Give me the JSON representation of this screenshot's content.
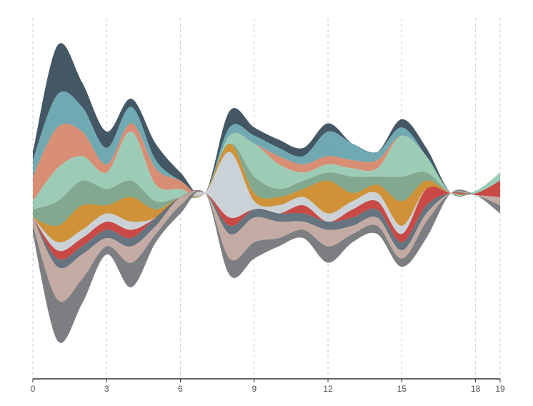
{
  "chart_data": {
    "type": "streamgraph",
    "x": [
      0,
      1,
      2,
      3,
      4,
      5,
      6,
      7,
      8,
      9,
      10,
      11,
      12,
      13,
      14,
      15,
      16,
      17,
      18,
      19
    ],
    "xlim": [
      0,
      19
    ],
    "xticks": [
      0,
      3,
      6,
      9,
      12,
      15,
      18,
      19
    ],
    "grid": true,
    "series": [
      {
        "color": "#2f4554",
        "values": [
          1,
          6,
          3,
          2,
          1,
          2,
          1,
          0,
          2,
          1,
          1,
          1,
          1,
          0,
          0,
          1,
          1,
          0,
          0,
          0
        ]
      },
      {
        "color": "#61a0a8",
        "values": [
          2,
          4,
          3,
          2,
          2,
          1,
          0,
          0,
          1,
          1,
          1,
          1,
          3,
          2,
          1,
          1,
          0,
          0,
          0,
          0
        ]
      },
      {
        "color": "#d48265",
        "values": [
          3,
          5,
          3,
          1,
          1,
          2,
          1,
          0,
          0,
          0,
          1,
          1,
          1,
          1,
          1,
          0,
          0,
          0,
          0,
          0
        ]
      },
      {
        "color": "#91c7ae",
        "values": [
          1,
          4,
          3,
          2,
          6,
          2,
          1,
          0,
          1,
          4,
          3,
          1,
          1,
          1,
          1,
          5,
          2,
          0,
          0.3,
          1
        ]
      },
      {
        "color": "#749f83",
        "values": [
          1,
          3,
          3,
          2,
          2,
          1,
          0,
          0,
          0,
          2,
          1,
          1,
          1,
          2,
          1,
          3,
          1,
          0,
          0,
          0
        ]
      },
      {
        "color": "#ca8622",
        "values": [
          0,
          2,
          3,
          1,
          3,
          1,
          0,
          0,
          1,
          1,
          1,
          1,
          4,
          1,
          1,
          3,
          1,
          0,
          0,
          0
        ]
      },
      {
        "color": "#c4ccd3",
        "values": [
          0,
          1,
          1,
          1,
          1,
          0,
          0,
          0,
          8,
          1,
          1,
          1,
          1,
          1,
          1,
          1,
          0,
          0,
          0,
          0
        ]
      },
      {
        "color": "#c23531",
        "values": [
          0,
          1,
          1,
          1,
          1,
          0,
          0,
          0,
          1,
          0,
          0,
          1,
          0,
          1,
          1,
          1,
          2,
          0,
          0.2,
          2
        ]
      },
      {
        "color": "#546570",
        "values": [
          0,
          1,
          1,
          1,
          1,
          1,
          0,
          0,
          1,
          1,
          1,
          1,
          1,
          1,
          1,
          1,
          1,
          0,
          0,
          0
        ]
      },
      {
        "color": "#bda29a",
        "values": [
          1,
          4,
          3,
          1,
          2,
          1,
          1,
          0,
          3,
          3,
          2,
          1,
          2,
          1,
          1,
          1,
          1,
          0,
          0,
          1
        ]
      },
      {
        "color": "#6e7074",
        "values": [
          1,
          5,
          3,
          1,
          3,
          1,
          1,
          0,
          2,
          2,
          1,
          1,
          2,
          1,
          1,
          1,
          2,
          0,
          0,
          1
        ]
      }
    ]
  }
}
